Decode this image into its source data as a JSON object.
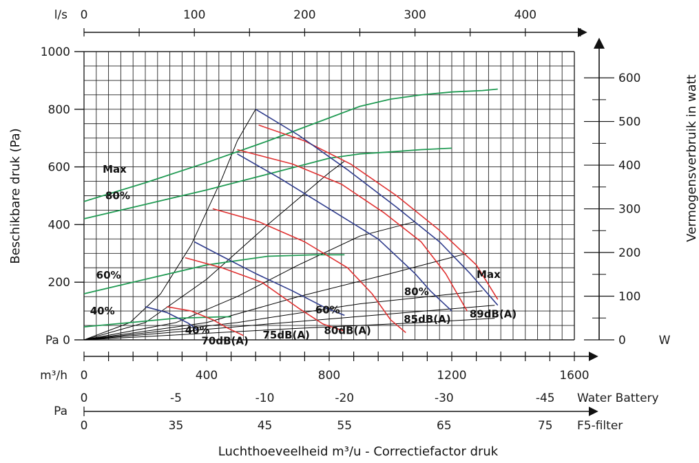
{
  "chart_data": {
    "type": "line",
    "title": "",
    "xlabel": "Luchthoeveelheid m³/u - Correctiefactor druk",
    "ylabel": "Beschikbare druk (Pa)",
    "y2label": "Vermogensverbruik in watt",
    "x_unit": "m³/h",
    "y_unit": "Pa",
    "y2_unit": "W",
    "xlim": [
      0,
      1600
    ],
    "ylim": [
      0,
      1000
    ],
    "y2lim": [
      0,
      660
    ],
    "grid": true,
    "x_ticks": [
      0,
      400,
      800,
      1200,
      1600
    ],
    "y_ticks": [
      0,
      200,
      400,
      600,
      800,
      1000
    ],
    "y_tick_labels": [
      "Pa 0",
      "200",
      "400",
      "600",
      "800",
      "1000"
    ],
    "y2_ticks": [
      0,
      100,
      200,
      300,
      400,
      500,
      600
    ],
    "top_axis": {
      "unit": "l/s",
      "ticks": [
        0,
        100,
        200,
        300,
        400
      ],
      "positions_m3h": [
        0,
        360,
        720,
        1080,
        1440
      ]
    },
    "water_battery": {
      "label": "Water Battery",
      "ticks": [
        "0",
        "-5",
        "-10",
        "-20",
        "-30",
        "-45"
      ],
      "positions_m3h": [
        0,
        300,
        590,
        850,
        1175,
        1505
      ],
      "color": "#8dbf3a"
    },
    "f5_filter": {
      "unit": "Pa",
      "label": "F5-filter",
      "ticks": [
        "0",
        "35",
        "45",
        "55",
        "65",
        "75"
      ],
      "positions_m3h": [
        0,
        300,
        590,
        850,
        1175,
        1505
      ],
      "color": "#1aa0d8"
    },
    "fan_curves": {
      "color": "#2e3b8c",
      "labels": [
        {
          "text": "40%",
          "x": 370,
          "y": 22
        },
        {
          "text": "60%",
          "x": 795,
          "y": 92
        },
        {
          "text": "80%",
          "x": 1085,
          "y": 155
        },
        {
          "text": "Max",
          "x": 1320,
          "y": 215
        }
      ],
      "series": [
        {
          "name": "40%",
          "points": [
            [
              200,
              115
            ],
            [
              270,
              95
            ],
            [
              340,
              58
            ],
            [
              370,
              35
            ]
          ]
        },
        {
          "name": "60%",
          "points": [
            [
              360,
              340
            ],
            [
              450,
              290
            ],
            [
              560,
              230
            ],
            [
              680,
              170
            ],
            [
              790,
              110
            ],
            [
              850,
              85
            ]
          ]
        },
        {
          "name": "80%",
          "points": [
            [
              500,
              645
            ],
            [
              640,
              560
            ],
            [
              800,
              455
            ],
            [
              960,
              350
            ],
            [
              1080,
              230
            ],
            [
              1130,
              170
            ],
            [
              1200,
              100
            ]
          ]
        },
        {
          "name": "Max",
          "points": [
            [
              560,
              800
            ],
            [
              700,
              710
            ],
            [
              860,
              590
            ],
            [
              1020,
              460
            ],
            [
              1160,
              340
            ],
            [
              1260,
              230
            ],
            [
              1350,
              120
            ]
          ]
        }
      ]
    },
    "sound_curves": {
      "color": "#e03030",
      "labels": [
        {
          "text": "70dB(A)",
          "x": 460,
          "y": -15
        },
        {
          "text": "75dB(A)",
          "x": 660,
          "y": 5
        },
        {
          "text": "80dB(A)",
          "x": 860,
          "y": 20
        },
        {
          "text": "85dB(A)",
          "x": 1120,
          "y": 60
        },
        {
          "text": "89dB(A)",
          "x": 1335,
          "y": 78
        }
      ],
      "series": [
        {
          "name": "70dB(A)",
          "points": [
            [
              270,
              115
            ],
            [
              350,
              100
            ],
            [
              420,
              70
            ],
            [
              470,
              40
            ],
            [
              520,
              15
            ]
          ]
        },
        {
          "name": "75dB(A)",
          "points": [
            [
              330,
              285
            ],
            [
              450,
              250
            ],
            [
              580,
              200
            ],
            [
              700,
              110
            ],
            [
              780,
              55
            ],
            [
              850,
              30
            ]
          ]
        },
        {
          "name": "80dB(A)",
          "points": [
            [
              420,
              455
            ],
            [
              570,
              410
            ],
            [
              720,
              340
            ],
            [
              860,
              250
            ],
            [
              940,
              160
            ],
            [
              1000,
              70
            ],
            [
              1050,
              25
            ]
          ]
        },
        {
          "name": "85dB(A)",
          "points": [
            [
              500,
              660
            ],
            [
              680,
              610
            ],
            [
              840,
              540
            ],
            [
              980,
              440
            ],
            [
              1100,
              340
            ],
            [
              1180,
              230
            ],
            [
              1250,
              100
            ]
          ]
        },
        {
          "name": "89dB(A)",
          "points": [
            [
              570,
              745
            ],
            [
              720,
              690
            ],
            [
              870,
              610
            ],
            [
              1020,
              500
            ],
            [
              1160,
              380
            ],
            [
              1280,
              260
            ],
            [
              1350,
              140
            ]
          ]
        }
      ]
    },
    "power_curves": {
      "color": "#1f9a52",
      "labels": [
        {
          "text": "Max",
          "x": 100,
          "y": 580
        },
        {
          "text": "80%",
          "x": 110,
          "y": 488
        },
        {
          "text": "60%",
          "x": 80,
          "y": 212
        },
        {
          "text": "40%",
          "x": 60,
          "y": 88
        }
      ],
      "series": [
        {
          "name": "Max",
          "points": [
            [
              0,
              480
            ],
            [
              200,
              545
            ],
            [
              400,
              615
            ],
            [
              600,
              690
            ],
            [
              800,
              770
            ],
            [
              900,
              810
            ],
            [
              1000,
              835
            ],
            [
              1100,
              850
            ],
            [
              1200,
              860
            ],
            [
              1300,
              865
            ],
            [
              1350,
              870
            ]
          ]
        },
        {
          "name": "80%",
          "points": [
            [
              0,
              420
            ],
            [
              200,
              470
            ],
            [
              400,
              520
            ],
            [
              600,
              575
            ],
            [
              800,
              630
            ],
            [
              900,
              645
            ],
            [
              1000,
              652
            ],
            [
              1100,
              660
            ],
            [
              1200,
              665
            ]
          ]
        },
        {
          "name": "60%",
          "points": [
            [
              0,
              160
            ],
            [
              200,
              210
            ],
            [
              400,
              260
            ],
            [
              600,
              290
            ],
            [
              750,
              295
            ],
            [
              850,
              295
            ]
          ]
        },
        {
          "name": "40%",
          "points": [
            [
              0,
              45
            ],
            [
              150,
              60
            ],
            [
              300,
              75
            ],
            [
              450,
              80
            ],
            [
              480,
              80
            ]
          ]
        }
      ]
    },
    "system_curves": {
      "color": "#000000",
      "series": [
        {
          "points": [
            [
              0,
              0
            ],
            [
              150,
              60
            ],
            [
              250,
              160
            ],
            [
              350,
              330
            ],
            [
              450,
              560
            ],
            [
              500,
              690
            ],
            [
              560,
              800
            ]
          ]
        },
        {
          "points": [
            [
              0,
              0
            ],
            [
              200,
              60
            ],
            [
              400,
              210
            ],
            [
              600,
              400
            ],
            [
              800,
              580
            ],
            [
              850,
              620
            ]
          ]
        },
        {
          "points": [
            [
              0,
              0
            ],
            [
              300,
              60
            ],
            [
              500,
              150
            ],
            [
              700,
              260
            ],
            [
              900,
              360
            ],
            [
              1080,
              410
            ]
          ]
        },
        {
          "points": [
            [
              0,
              0
            ],
            [
              400,
              60
            ],
            [
              700,
              150
            ],
            [
              1000,
              230
            ],
            [
              1250,
              300
            ]
          ]
        },
        {
          "points": [
            [
              0,
              0
            ],
            [
              500,
              60
            ],
            [
              900,
              125
            ],
            [
              1300,
              170
            ]
          ]
        },
        {
          "points": [
            [
              0,
              0
            ],
            [
              600,
              55
            ],
            [
              1000,
              90
            ],
            [
              1340,
              120
            ]
          ]
        },
        {
          "points": [
            [
              0,
              0
            ],
            [
              700,
              40
            ],
            [
              1100,
              60
            ],
            [
              1340,
              75
            ]
          ]
        }
      ]
    }
  }
}
